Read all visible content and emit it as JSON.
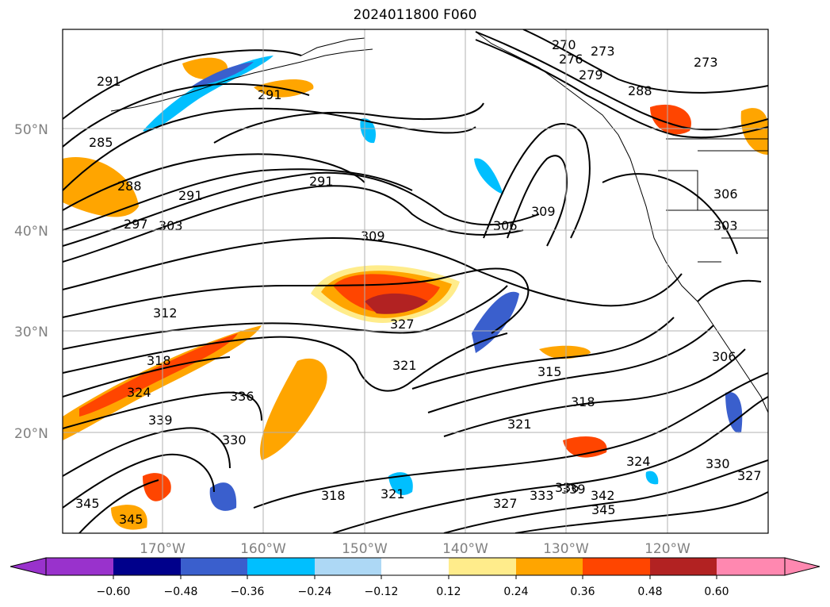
{
  "title": "2024011800 F060",
  "lat_labels": [
    "50°N",
    "40°N",
    "30°N",
    "20°N"
  ],
  "lon_labels": [
    "170°W",
    "160°W",
    "150°W",
    "140°W",
    "130°W",
    "120°W"
  ],
  "contour_labels": [
    "270",
    "273",
    "276",
    "279",
    "273",
    "288",
    "291",
    "291",
    "285",
    "288",
    "291",
    "291",
    "297",
    "303",
    "309",
    "306",
    "309",
    "306",
    "312",
    "327",
    "321",
    "315",
    "318",
    "324",
    "336",
    "339",
    "330",
    "321",
    "318",
    "345",
    "345",
    "318",
    "321",
    "327",
    "333",
    "336",
    "339",
    "342",
    "345",
    "324",
    "330",
    "327",
    "306",
    "303"
  ],
  "colorbar": {
    "ticks": [
      "−0.60",
      "−0.48",
      "−0.36",
      "−0.24",
      "−0.12",
      "0.12",
      "0.24",
      "0.36",
      "0.48",
      "0.60"
    ],
    "colors": [
      "#9932cc",
      "#00008b",
      "#3a5fcd",
      "#00bfff",
      "#add8f5",
      "#ffffff",
      "#ffec8b",
      "#ffa500",
      "#ff4500",
      "#b22222",
      "#ff88b0"
    ]
  },
  "colors": {
    "land_outline": "#000000",
    "grid": "#b0b0b0",
    "contour": "#000000"
  }
}
